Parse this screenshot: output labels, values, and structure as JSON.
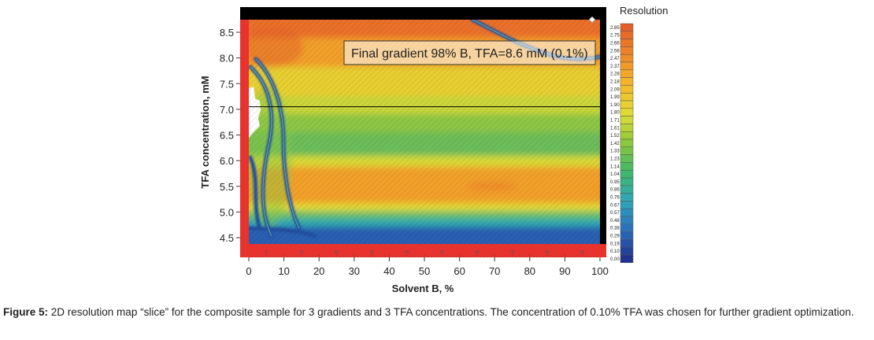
{
  "chart_data": {
    "type": "heatmap",
    "xlabel": "Solvent B, %",
    "ylabel": "TFA  concentration, mM",
    "xlim": [
      0,
      100
    ],
    "ylim": [
      4.2,
      8.9
    ],
    "x_ticks": [
      0,
      10,
      20,
      30,
      40,
      50,
      60,
      70,
      80,
      90,
      100
    ],
    "y_ticks": [
      4.5,
      5.0,
      5.5,
      6.0,
      6.5,
      7.0,
      7.5,
      8.0,
      8.5
    ],
    "x_tick_labels": [
      "0",
      "10",
      "20",
      "30",
      "40",
      "50",
      "60",
      "70",
      "80",
      "90",
      "100"
    ],
    "y_tick_labels": [
      "4.5",
      "5.0",
      "5.5",
      "6.0",
      "6.5",
      "7.0",
      "7.5",
      "8.0",
      "8.5"
    ],
    "secondary_x_ticks": [
      5,
      15,
      25,
      35,
      45,
      55,
      65,
      75,
      85,
      95
    ],
    "colorbar": {
      "title": "Resolution",
      "ticks": [
        "2.85",
        "2.75",
        "2.66",
        "2.56",
        "2.47",
        "2.37",
        "2.28",
        "2.18",
        "2.09",
        "1.99",
        "1.90",
        "1.80",
        "1.71",
        "1.61",
        "1.52",
        "1.42",
        "1.33",
        "1.23",
        "1.14",
        "1.04",
        "0.95",
        "0.86",
        "0.76",
        "0.67",
        "0.57",
        "0.48",
        "0.38",
        "0.29",
        "0.19",
        "0.10",
        "0.00"
      ],
      "min": 0.0,
      "max": 2.85,
      "colormap": [
        "#21318c",
        "#2a6fbf",
        "#2ea6b8",
        "#3fb86a",
        "#8cc83c",
        "#e0dc32",
        "#f5b82a",
        "#ef8a2a",
        "#e4602a"
      ]
    },
    "annotation": "Final gradient 98% B, TFA=8.6 mM (0.1%)",
    "reference_line_y": 7.05,
    "grid": false
  },
  "caption": {
    "label": "Figure 5:",
    "text": " 2D resolution map “slice” for the composite sample for 3 gradients and 3 TFA concentrations. The concentration of 0.10% TFA was chosen for further gradient optimization."
  }
}
